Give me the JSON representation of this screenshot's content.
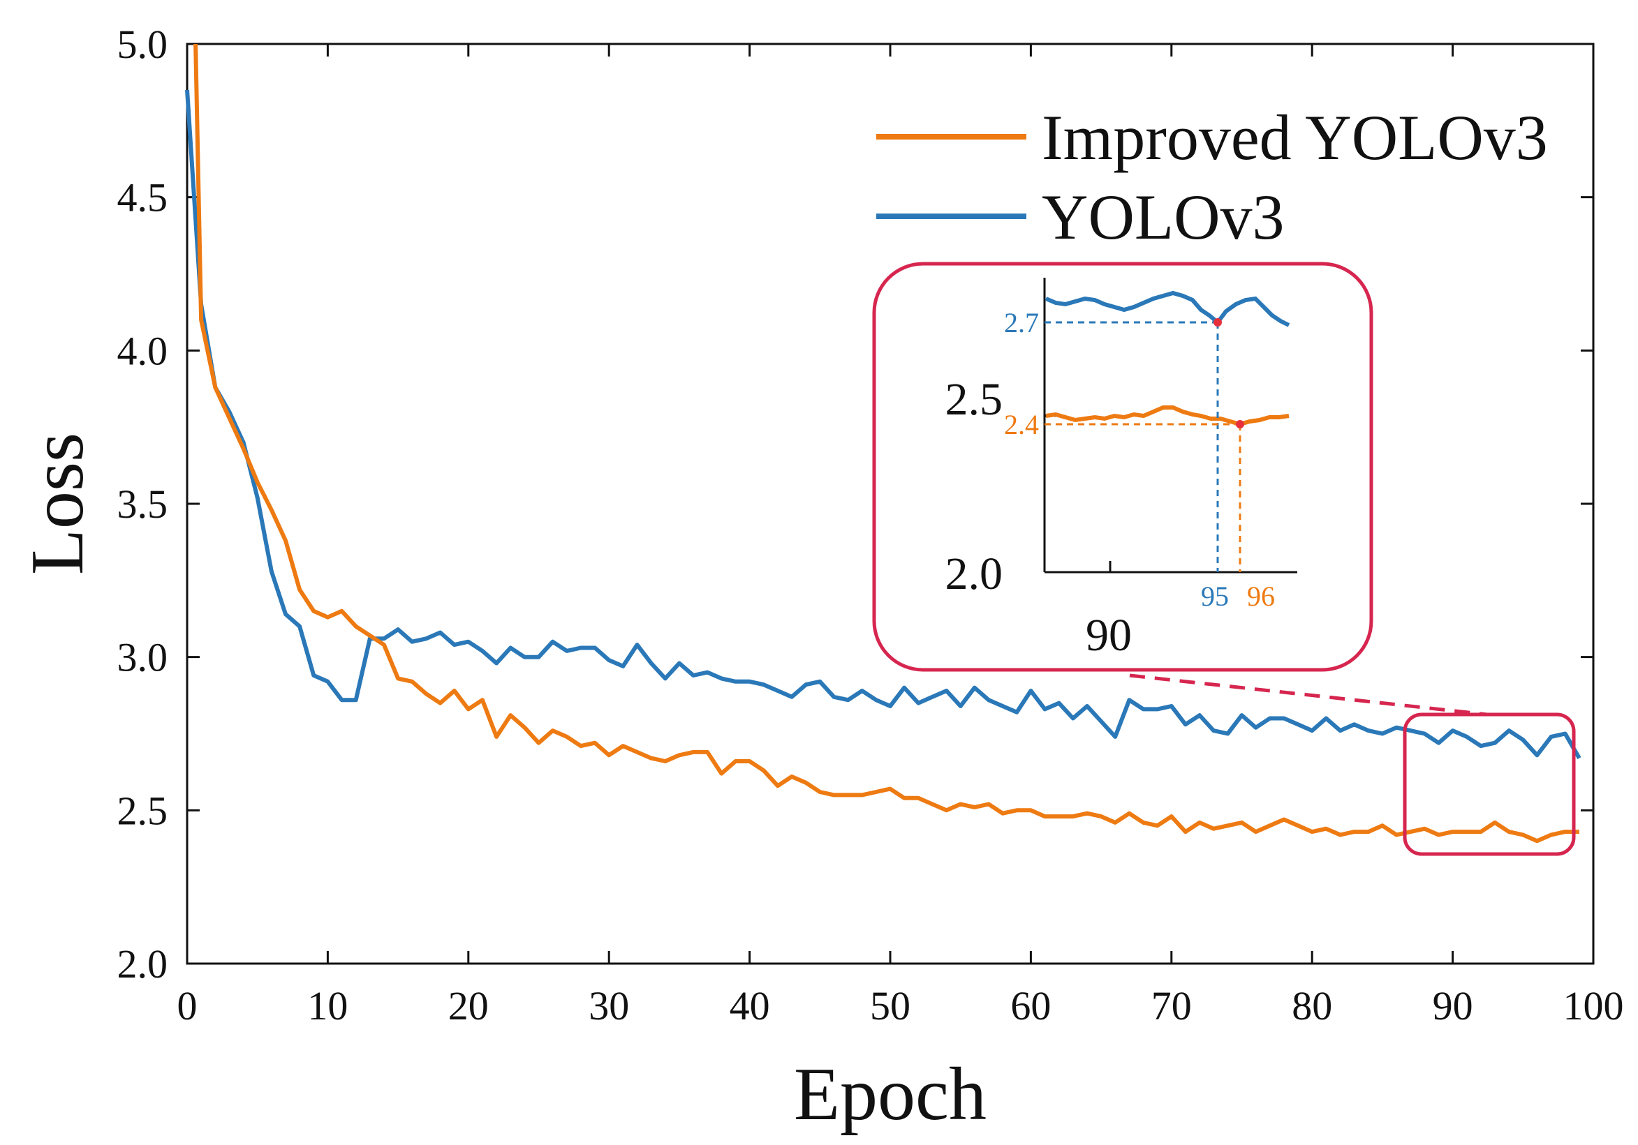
{
  "chart_data": {
    "type": "line",
    "xlabel": "Epoch",
    "ylabel": "Loss",
    "xlim": [
      0,
      100
    ],
    "ylim": [
      2.0,
      5.0
    ],
    "x_ticks": [
      "0",
      "10",
      "20",
      "30",
      "40",
      "50",
      "60",
      "70",
      "80",
      "90",
      "100"
    ],
    "y_ticks": [
      "2.0",
      "2.5",
      "3.0",
      "3.5",
      "4.0",
      "4.5",
      "5.0"
    ],
    "legend_position": "top-right",
    "series": [
      {
        "name": "Improved YOLOv3",
        "color": "#ee7a12",
        "x": [
          0.6,
          1,
          2,
          3,
          4,
          5,
          6,
          7,
          8,
          9,
          10,
          11,
          12,
          13,
          14,
          15,
          16,
          17,
          18,
          19,
          20,
          21,
          22,
          23,
          24,
          25,
          26,
          27,
          28,
          29,
          30,
          31,
          32,
          33,
          34,
          35,
          36,
          37,
          38,
          39,
          40,
          41,
          42,
          43,
          44,
          45,
          46,
          47,
          48,
          49,
          50,
          51,
          52,
          53,
          54,
          55,
          56,
          57,
          58,
          59,
          60,
          61,
          62,
          63,
          64,
          65,
          66,
          67,
          68,
          69,
          70,
          71,
          72,
          73,
          74,
          75,
          76,
          77,
          78,
          79,
          80,
          81,
          82,
          83,
          84,
          85,
          86,
          87,
          88,
          89,
          90,
          91,
          92,
          93,
          94,
          95,
          96,
          97,
          98,
          99
        ],
        "y": [
          5.0,
          4.1,
          3.88,
          3.78,
          3.68,
          3.57,
          3.48,
          3.38,
          3.22,
          3.15,
          3.13,
          3.15,
          3.1,
          3.07,
          3.04,
          2.93,
          2.92,
          2.88,
          2.85,
          2.89,
          2.83,
          2.86,
          2.74,
          2.81,
          2.77,
          2.72,
          2.76,
          2.74,
          2.71,
          2.72,
          2.68,
          2.71,
          2.69,
          2.67,
          2.66,
          2.68,
          2.69,
          2.69,
          2.62,
          2.66,
          2.66,
          2.63,
          2.58,
          2.61,
          2.59,
          2.56,
          2.55,
          2.55,
          2.55,
          2.56,
          2.57,
          2.54,
          2.54,
          2.52,
          2.5,
          2.52,
          2.51,
          2.52,
          2.49,
          2.5,
          2.5,
          2.48,
          2.48,
          2.48,
          2.49,
          2.48,
          2.46,
          2.49,
          2.46,
          2.45,
          2.48,
          2.43,
          2.46,
          2.44,
          2.45,
          2.46,
          2.43,
          2.45,
          2.47,
          2.45,
          2.43,
          2.44,
          2.42,
          2.43,
          2.43,
          2.45,
          2.42,
          2.43,
          2.44,
          2.42,
          2.43,
          2.43,
          2.43,
          2.46,
          2.43,
          2.42,
          2.4,
          2.42,
          2.43,
          2.43
        ]
      },
      {
        "name": "YOLOv3",
        "color": "#2a78b8",
        "x": [
          0,
          1,
          2,
          3,
          4,
          5,
          6,
          7,
          8,
          9,
          10,
          11,
          12,
          13,
          14,
          15,
          16,
          17,
          18,
          19,
          20,
          21,
          22,
          23,
          24,
          25,
          26,
          27,
          28,
          29,
          30,
          31,
          32,
          33,
          34,
          35,
          36,
          37,
          38,
          39,
          40,
          41,
          42,
          43,
          44,
          45,
          46,
          47,
          48,
          49,
          50,
          51,
          52,
          53,
          54,
          55,
          56,
          57,
          58,
          59,
          60,
          61,
          62,
          63,
          64,
          65,
          66,
          67,
          68,
          69,
          70,
          71,
          72,
          73,
          74,
          75,
          76,
          77,
          78,
          79,
          80,
          81,
          82,
          83,
          84,
          85,
          86,
          87,
          88,
          89,
          90,
          91,
          92,
          93,
          94,
          95,
          96,
          97,
          98,
          99
        ],
        "y": [
          4.85,
          4.15,
          3.88,
          3.8,
          3.7,
          3.52,
          3.28,
          3.14,
          3.1,
          2.94,
          2.92,
          2.86,
          2.86,
          3.06,
          3.06,
          3.09,
          3.05,
          3.06,
          3.08,
          3.04,
          3.05,
          3.02,
          2.98,
          3.03,
          3.0,
          3.0,
          3.05,
          3.02,
          3.03,
          3.03,
          2.99,
          2.97,
          3.04,
          2.98,
          2.93,
          2.98,
          2.94,
          2.95,
          2.93,
          2.92,
          2.92,
          2.91,
          2.89,
          2.87,
          2.91,
          2.92,
          2.87,
          2.86,
          2.89,
          2.86,
          2.84,
          2.9,
          2.85,
          2.87,
          2.89,
          2.84,
          2.9,
          2.86,
          2.84,
          2.82,
          2.89,
          2.83,
          2.85,
          2.8,
          2.84,
          2.79,
          2.74,
          2.86,
          2.83,
          2.83,
          2.84,
          2.78,
          2.81,
          2.76,
          2.75,
          2.81,
          2.77,
          2.8,
          2.8,
          2.78,
          2.76,
          2.8,
          2.76,
          2.78,
          2.76,
          2.75,
          2.77,
          2.76,
          2.75,
          2.72,
          2.76,
          2.74,
          2.71,
          2.72,
          2.76,
          2.73,
          2.68,
          2.74,
          2.75,
          2.67
        ]
      }
    ]
  },
  "inset": {
    "y_tick_big": [
      "2.5",
      "2.0"
    ],
    "y_marks": {
      "blue": "2.7",
      "orange": "2.4"
    },
    "x_tick_big": "90",
    "x_marks": {
      "blue": "95",
      "orange": "96"
    },
    "colors": {
      "frame": "#d6264f",
      "marker": "#e8303c"
    }
  }
}
